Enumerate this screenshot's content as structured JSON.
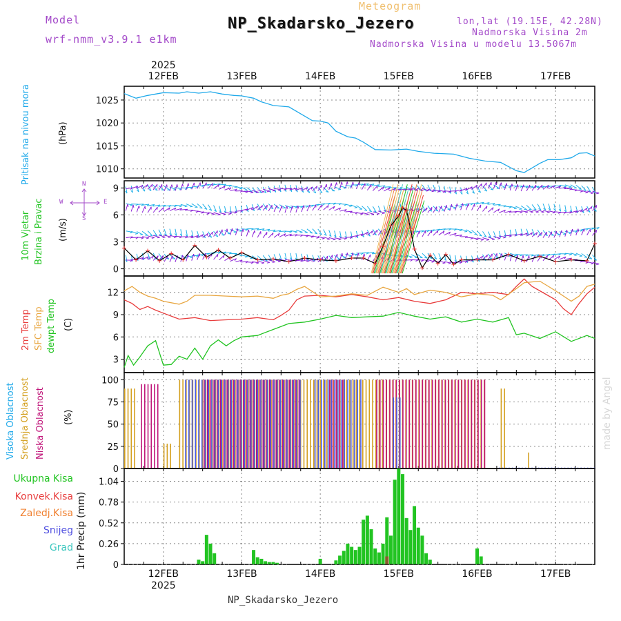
{
  "header": {
    "model_label": "Model",
    "model_name": "wrf-nmm_v3.9.1 e1km",
    "meteogram_label": "Meteogram",
    "station_title": "NP_Skadarsko_Jezero",
    "lonlat": "lon,lat (19.15E, 42.28N)",
    "elevation": "Nadmorska Visina 2m",
    "model_elevation": "Nadmorska Visina u modelu 13.5067m",
    "watermark": "made by Angel",
    "footer_station": "NP_Skadarsko_Jezero"
  },
  "time_axis": {
    "year": "2025",
    "dates": [
      "12FEB",
      "13FEB",
      "14FEB",
      "15FEB",
      "16FEB",
      "17FEB"
    ]
  },
  "colors": {
    "pressure": "#1fa9ea",
    "wind_speed": "#000000",
    "wind_speed_marker": "#e83030",
    "temp_2m": "#e83c3c",
    "temp_sfc": "#e8a640",
    "dewpoint": "#22c422",
    "cloud_high": "#4a5be0",
    "cloud_mid": "#d4a020",
    "cloud_low": "#c0157a",
    "precip_total": "#22c422",
    "precip_conv": "#e83c3c",
    "precip_frozen": "#f08030",
    "precip_snow": "#5050e0",
    "precip_grad": "#40c8c0",
    "barb_blue": "#20b0e8",
    "barb_purple": "#8a1fd6"
  },
  "labels": {
    "pressure_title": "Pritisak na nivou mora",
    "pressure_unit": "(hPa)",
    "wind_title_1": "10m Vjetar",
    "wind_title_2": "Brzina i Pravac",
    "wind_unit": "(m/s)",
    "compass_n": "N",
    "compass_s": "S",
    "compass_e": "E",
    "compass_w": "W",
    "temp_title_2m": "2m Temp",
    "temp_title_sfc": "SFC Temp",
    "temp_title_dew": "dewpt Temp",
    "temp_unit": "(C)",
    "cloud_high_label": "Visoka Oblacnost",
    "cloud_mid_label": "Srednja Oblacnost",
    "cloud_low_label": "Niska Oblacnost",
    "cloud_unit": "(%)",
    "precip_axis": "1hr Precip (mm)",
    "legend_total": "Ukupna Kisa",
    "legend_conv": "Konvek.Kisa",
    "legend_frozen": "Zaledj.Kisa",
    "legend_snow": "Snijeg",
    "legend_grad": "Grad"
  },
  "chart_data": [
    {
      "type": "line",
      "title": "Pritisak na nivou mora",
      "ylabel": "(hPa)",
      "ylim": [
        1008,
        1028
      ],
      "yticks": [
        1010,
        1015,
        1020,
        1025
      ],
      "x_unit": "days since 12FEB 00UTC",
      "xlim": [
        -0.5,
        5.5
      ],
      "series": [
        {
          "name": "Pritisak na nivou mora",
          "x": [
            -0.5,
            -0.35,
            -0.2,
            0,
            0.2,
            0.3,
            0.45,
            0.6,
            0.75,
            0.9,
            1.0,
            1.15,
            1.25,
            1.4,
            1.6,
            1.75,
            1.9,
            2.0,
            2.1,
            2.2,
            2.35,
            2.45,
            2.55,
            2.7,
            2.9,
            3.1,
            3.25,
            3.45,
            3.7,
            3.9,
            4.1,
            4.3,
            4.5,
            4.6,
            4.7,
            4.8,
            4.9,
            5.05,
            5.2,
            5.3,
            5.4,
            5.5
          ],
          "y": [
            1026.4,
            1025.4,
            1026.0,
            1026.6,
            1026.5,
            1026.8,
            1026.5,
            1026.8,
            1026.3,
            1026.0,
            1025.9,
            1025.4,
            1024.6,
            1023.8,
            1023.5,
            1022.0,
            1020.5,
            1020.4,
            1020.0,
            1018.2,
            1017.0,
            1016.7,
            1015.8,
            1014.2,
            1014.1,
            1014.3,
            1013.8,
            1013.4,
            1013.2,
            1012.3,
            1011.7,
            1011.4,
            1009.6,
            1009.2,
            1010.2,
            1011.2,
            1012.0,
            1012.0,
            1012.4,
            1013.4,
            1013.5,
            1012.8
          ]
        }
      ]
    },
    {
      "type": "line",
      "title": "10m Vjetar Brzina i Pravac",
      "ylabel": "(m/s)",
      "ylim": [
        -0.8,
        9.8
      ],
      "yticks": [
        0,
        3,
        6,
        9
      ],
      "x_unit": "days since 12FEB 00UTC",
      "xlim": [
        -0.5,
        5.5
      ],
      "series": [
        {
          "name": "10m wind speed",
          "x": [
            -0.5,
            -0.35,
            -0.2,
            -0.05,
            0.1,
            0.25,
            0.4,
            0.55,
            0.7,
            0.85,
            1.0,
            1.2,
            1.4,
            1.6,
            1.8,
            2.0,
            2.2,
            2.4,
            2.55,
            2.7,
            2.8,
            2.9,
            3.0,
            3.05,
            3.1,
            3.15,
            3.2,
            3.3,
            3.4,
            3.5,
            3.6,
            3.7,
            3.8,
            4.0,
            4.2,
            4.4,
            4.6,
            4.8,
            5.0,
            5.2,
            5.4,
            5.5
          ],
          "y": [
            2.3,
            1.0,
            2.0,
            0.9,
            1.7,
            1.0,
            2.6,
            1.3,
            2.1,
            1.2,
            1.8,
            1.0,
            1.1,
            0.8,
            1.2,
            1.0,
            0.9,
            1.2,
            1.2,
            0.6,
            2.5,
            4.8,
            5.9,
            6.8,
            6.5,
            4.5,
            2.2,
            0.1,
            1.5,
            0.6,
            1.6,
            0.5,
            1.0,
            1.0,
            1.0,
            1.6,
            0.9,
            1.4,
            0.8,
            1.0,
            0.9,
            2.8
          ]
        }
      ]
    },
    {
      "type": "line",
      "title": "2m Temp / SFC Temp / dewpt Temp",
      "ylabel": "(C)",
      "ylim": [
        1.2,
        14.2
      ],
      "yticks": [
        3,
        6,
        9,
        12
      ],
      "x_unit": "days since 12FEB 00UTC",
      "xlim": [
        -0.5,
        5.5
      ],
      "series": [
        {
          "name": "2m Temp",
          "x": [
            -0.5,
            -0.4,
            -0.3,
            -0.2,
            -0.1,
            0,
            0.2,
            0.4,
            0.6,
            0.8,
            1.0,
            1.2,
            1.4,
            1.5,
            1.6,
            1.7,
            1.8,
            2.0,
            2.2,
            2.4,
            2.6,
            2.8,
            3.0,
            3.2,
            3.4,
            3.6,
            3.8,
            4.0,
            4.2,
            4.4,
            4.5,
            4.6,
            4.7,
            4.8,
            4.9,
            5.0,
            5.1,
            5.2,
            5.3,
            5.4,
            5.5
          ],
          "y": [
            11.0,
            10.5,
            9.7,
            10.1,
            9.6,
            9.2,
            8.4,
            8.6,
            8.2,
            8.3,
            8.4,
            8.6,
            8.3,
            8.9,
            9.6,
            11.0,
            11.5,
            11.6,
            11.4,
            11.7,
            11.4,
            11.0,
            11.3,
            10.8,
            10.5,
            11.0,
            12.0,
            11.8,
            12.0,
            11.7,
            12.8,
            13.8,
            12.8,
            12.2,
            11.6,
            11.0,
            9.8,
            9.0,
            10.5,
            11.8,
            12.7
          ]
        },
        {
          "name": "SFC Temp",
          "x": [
            -0.5,
            -0.4,
            -0.3,
            -0.2,
            -0.1,
            0,
            0.2,
            0.3,
            0.4,
            0.6,
            0.8,
            1.0,
            1.2,
            1.4,
            1.5,
            1.6,
            1.7,
            1.8,
            2.0,
            2.2,
            2.4,
            2.6,
            2.8,
            3.0,
            3.1,
            3.2,
            3.4,
            3.6,
            3.8,
            4.0,
            4.2,
            4.3,
            4.5,
            4.6,
            4.8,
            5.0,
            5.2,
            5.3,
            5.4,
            5.5
          ],
          "y": [
            12.2,
            12.8,
            12.0,
            11.5,
            11.2,
            10.8,
            10.4,
            10.8,
            11.6,
            11.6,
            11.5,
            11.4,
            11.5,
            11.2,
            11.6,
            11.8,
            12.4,
            12.8,
            11.4,
            11.5,
            11.8,
            11.6,
            12.7,
            12.0,
            12.5,
            11.7,
            12.3,
            12.0,
            11.4,
            11.8,
            11.6,
            11.0,
            12.5,
            13.3,
            13.5,
            12.2,
            10.8,
            11.5,
            12.8,
            13.1
          ]
        },
        {
          "name": "dewpt Temp",
          "x": [
            -0.5,
            -0.45,
            -0.38,
            -0.3,
            -0.2,
            -0.1,
            0,
            0.1,
            0.2,
            0.3,
            0.4,
            0.5,
            0.6,
            0.7,
            0.8,
            0.9,
            1.0,
            1.2,
            1.4,
            1.6,
            1.8,
            2.0,
            2.2,
            2.4,
            2.6,
            2.8,
            3.0,
            3.2,
            3.4,
            3.6,
            3.8,
            4.0,
            4.2,
            4.4,
            4.5,
            4.6,
            4.8,
            5.0,
            5.2,
            5.4,
            5.5
          ],
          "y": [
            1.9,
            3.5,
            2.2,
            3.3,
            4.8,
            5.5,
            2.2,
            2.3,
            3.4,
            3.0,
            4.5,
            3.0,
            4.8,
            5.6,
            4.8,
            5.5,
            6.0,
            6.2,
            7.0,
            7.8,
            8.0,
            8.4,
            8.9,
            8.6,
            8.7,
            8.8,
            9.3,
            8.8,
            8.4,
            8.7,
            8.0,
            8.4,
            8.0,
            8.6,
            6.3,
            6.5,
            5.8,
            6.7,
            5.4,
            6.2,
            5.8
          ]
        }
      ]
    },
    {
      "type": "bar",
      "title": "Visoka / Srednja / Niska Oblacnost",
      "ylabel": "(%)",
      "ylim": [
        0,
        108
      ],
      "yticks": [
        0,
        25,
        50,
        75,
        100
      ],
      "x_unit": "days since 12FEB 00UTC",
      "xlim": [
        -0.5,
        5.5
      ],
      "note": "hourly cloud cover (%), approximate",
      "high": {
        "start": -0.5,
        "step": 0.041667,
        "values_by_range": [
          [
            0.25,
            1.75,
            100
          ],
          [
            1.9,
            2.5,
            100
          ],
          [
            2.9,
            3.0,
            80
          ],
          [
            4.25,
            5.5,
            1
          ]
        ]
      },
      "mid": {
        "start": -0.5,
        "step": 0.041667,
        "values_by_range": [
          [
            -0.5,
            -0.35,
            90
          ],
          [
            0.0,
            0.1,
            28
          ],
          [
            0.2,
            2.8,
            100
          ],
          [
            2.75,
            4.1,
            100
          ],
          [
            4.3,
            4.35,
            90
          ],
          [
            4.65,
            4.68,
            18
          ]
        ]
      },
      "low": {
        "start": -0.5,
        "step": 0.041667,
        "values_by_range": [
          [
            -0.3,
            -0.05,
            95
          ],
          [
            0.5,
            1.75,
            100
          ],
          [
            2.1,
            2.3,
            100
          ],
          [
            2.7,
            4.1,
            100
          ]
        ]
      }
    },
    {
      "type": "bar",
      "title": "1hr Precip (mm)",
      "ylabel": "1hr Precip (mm)",
      "ylim": [
        0,
        1.2
      ],
      "yticks": [
        0,
        0.26,
        0.52,
        0.78,
        1.04
      ],
      "x_unit": "days since 12FEB 00UTC",
      "xlim": [
        -0.5,
        5.5
      ],
      "series": [
        {
          "name": "Ukupna Kisa",
          "x": [
            0.45,
            0.5,
            0.55,
            0.6,
            0.65,
            0.7,
            1.1,
            1.15,
            1.2,
            1.25,
            1.3,
            1.35,
            1.4,
            1.45,
            1.5,
            2.0,
            2.2,
            2.25,
            2.3,
            2.35,
            2.4,
            2.45,
            2.5,
            2.55,
            2.6,
            2.65,
            2.7,
            2.75,
            2.8,
            2.85,
            2.9,
            2.95,
            3.0,
            3.05,
            3.1,
            3.15,
            3.2,
            3.25,
            3.3,
            3.35,
            3.4,
            4.0,
            4.05
          ],
          "y": [
            0.06,
            0.04,
            0.37,
            0.26,
            0.14,
            0.0,
            0.0,
            0.18,
            0.09,
            0.07,
            0.04,
            0.03,
            0.03,
            0.02,
            0.0,
            0.07,
            0.05,
            0.11,
            0.17,
            0.26,
            0.22,
            0.18,
            0.22,
            0.56,
            0.61,
            0.44,
            0.2,
            0.15,
            0.26,
            0.59,
            0.36,
            1.06,
            1.2,
            1.13,
            0.58,
            0.43,
            0.73,
            0.46,
            0.36,
            0.14,
            0.06,
            0.2,
            0.1
          ]
        },
        {
          "name": "Konvek.Kisa",
          "x": [
            2.95
          ],
          "y": [
            0.0
          ]
        },
        {
          "name": "Zaledj.Kisa",
          "x": [],
          "y": []
        },
        {
          "name": "Snijeg",
          "x": [],
          "y": []
        },
        {
          "name": "Grad",
          "x": [
            2.85
          ],
          "y": [
            0.1
          ]
        }
      ]
    }
  ]
}
